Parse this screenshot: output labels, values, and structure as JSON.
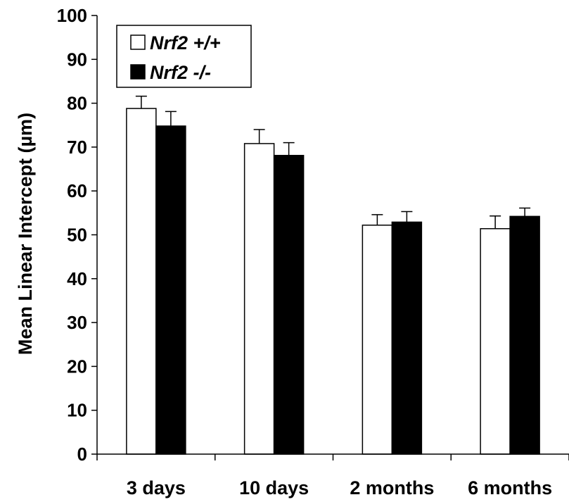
{
  "chart_data": {
    "type": "bar",
    "ylabel": "Mean Linear Intercept (µm)",
    "xlabel": "",
    "ylim": [
      0,
      100
    ],
    "yticks": [
      0,
      10,
      20,
      30,
      40,
      50,
      60,
      70,
      80,
      90,
      100
    ],
    "categories": [
      "3 days",
      "10 days",
      "2 months",
      "6 months"
    ],
    "series": [
      {
        "name": "Nrf2 +/+",
        "fill": "#ffffff",
        "values": [
          78.8,
          70.8,
          52.2,
          51.4
        ],
        "errors": [
          2.8,
          3.2,
          2.4,
          2.9
        ]
      },
      {
        "name": "Nrf2 -/-",
        "fill": "#000000",
        "values": [
          74.8,
          68.1,
          52.9,
          54.2
        ],
        "errors": [
          3.3,
          2.9,
          2.4,
          1.9
        ]
      }
    ],
    "legend_position": "top-left",
    "grid": false
  }
}
